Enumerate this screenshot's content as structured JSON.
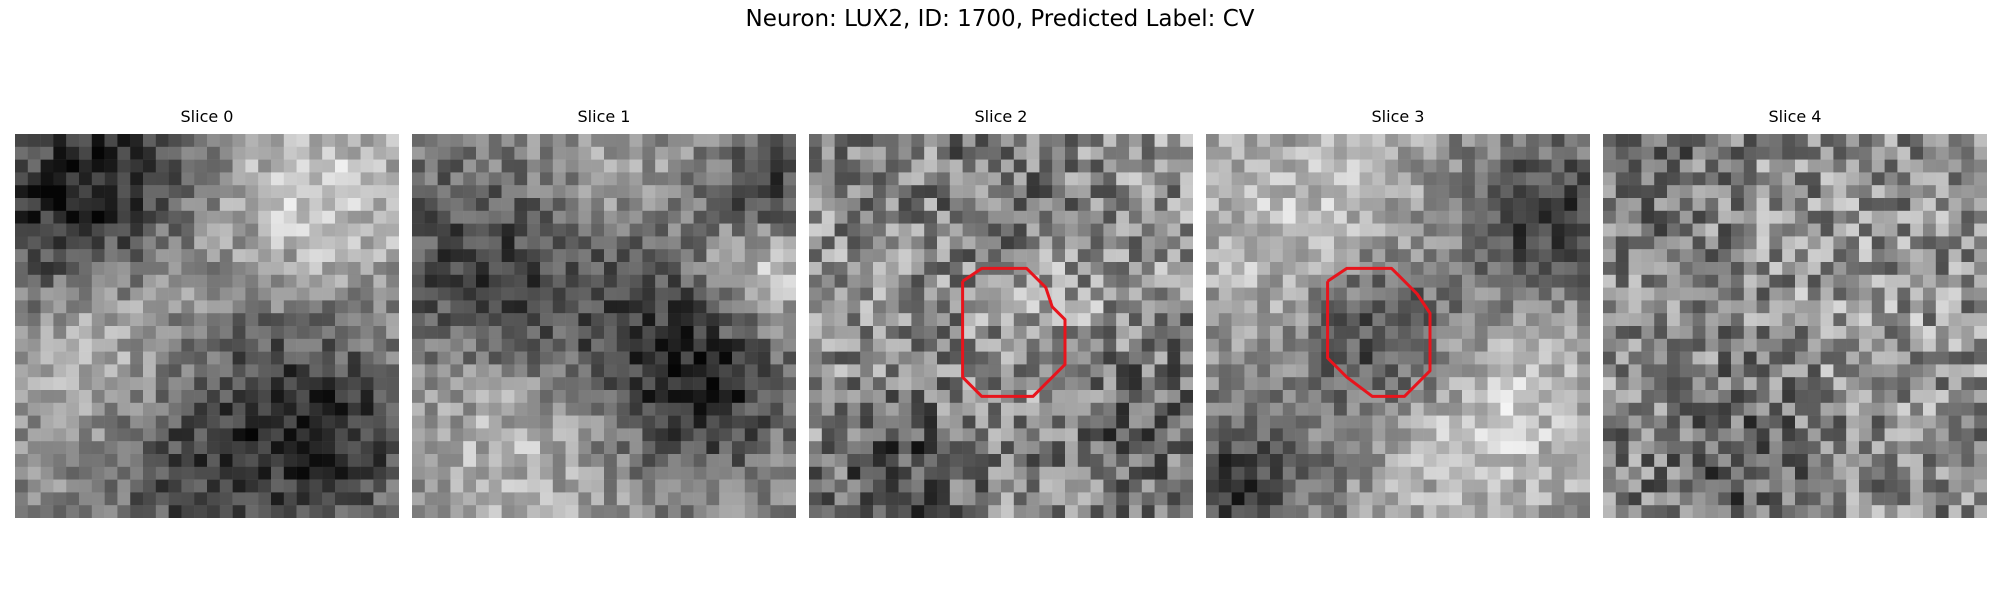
{
  "figure": {
    "title": "Neuron: LUX2, ID: 1700, Predicted Label: CV",
    "grid_size": 30,
    "contour_color": "#e8141c",
    "colormap": "gray",
    "panels": [
      {
        "label": "Slice 0",
        "seed": 11,
        "has_contour": false,
        "contour_points": []
      },
      {
        "label": "Slice 1",
        "seed": 23,
        "has_contour": false,
        "contour_points": []
      },
      {
        "label": "Slice 2",
        "seed": 37,
        "has_contour": true,
        "contour_points": [
          [
            12.0,
            11.5
          ],
          [
            13.5,
            10.5
          ],
          [
            17.0,
            10.5
          ],
          [
            18.5,
            12.0
          ],
          [
            19.0,
            13.5
          ],
          [
            20.0,
            14.5
          ],
          [
            20.0,
            18.0
          ],
          [
            18.5,
            19.5
          ],
          [
            17.5,
            20.5
          ],
          [
            13.5,
            20.5
          ],
          [
            12.0,
            19.0
          ],
          [
            12.0,
            11.5
          ]
        ]
      },
      {
        "label": "Slice 3",
        "seed": 41,
        "has_contour": true,
        "contour_points": [
          [
            9.5,
            11.5
          ],
          [
            11.0,
            10.5
          ],
          [
            14.5,
            10.5
          ],
          [
            16.5,
            12.5
          ],
          [
            17.5,
            14.0
          ],
          [
            17.5,
            18.5
          ],
          [
            15.5,
            20.5
          ],
          [
            13.0,
            20.5
          ],
          [
            11.0,
            19.0
          ],
          [
            9.5,
            17.5
          ],
          [
            9.5,
            11.5
          ]
        ]
      },
      {
        "label": "Slice 4",
        "seed": 53,
        "has_contour": false,
        "contour_points": []
      }
    ]
  }
}
